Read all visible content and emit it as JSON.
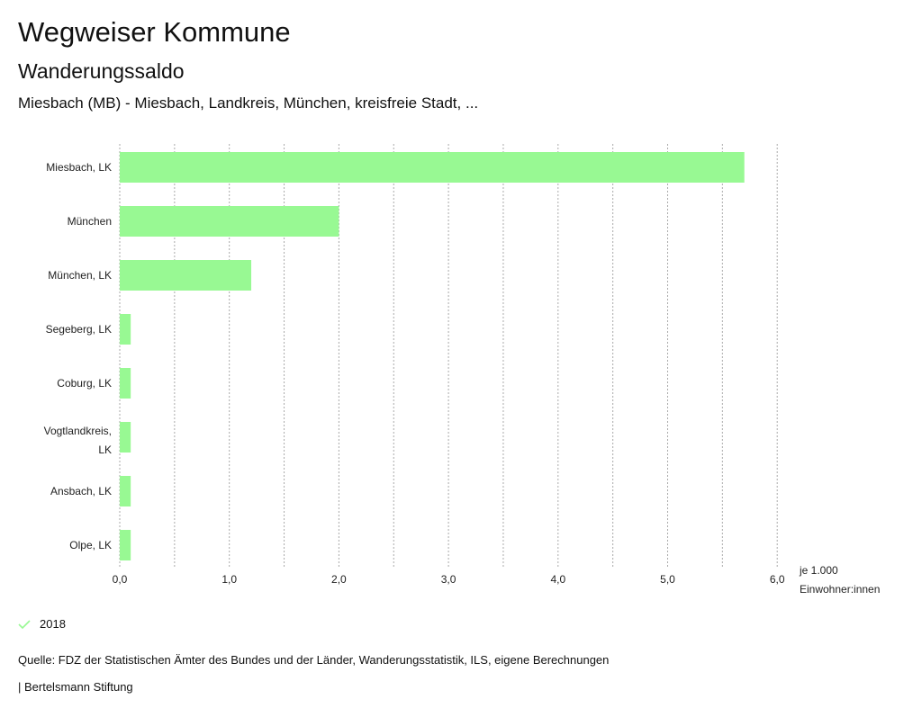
{
  "header": {
    "title": "Wegweiser Kommune",
    "subtitle": "Wanderungssaldo",
    "region": "Miesbach (MB) - Miesbach, Landkreis, München, kreisfreie Stadt, ..."
  },
  "chart_data": {
    "type": "bar",
    "orientation": "horizontal",
    "categories": [
      "Miesbach, LK",
      "München",
      "München, LK",
      "Segeberg, LK",
      "Coburg, LK",
      "Vogtlandkreis, LK",
      "Ansbach, LK",
      "Olpe, LK"
    ],
    "series": [
      {
        "name": "2018",
        "values": [
          5.7,
          2.0,
          1.2,
          0.1,
          0.1,
          0.1,
          0.1,
          0.1
        ],
        "color": "#98f993"
      }
    ],
    "xlim": [
      0,
      6
    ],
    "xticks": [
      "0,0",
      "1,0",
      "2,0",
      "3,0",
      "4,0",
      "5,0",
      "6,0"
    ],
    "xlabel_line1": "je 1.000",
    "xlabel_line2": "Einwohner:innen",
    "grid": true,
    "legend": "bottom-left"
  },
  "footer": {
    "source": "Quelle: FDZ der Statistischen Ämter des Bundes und der Länder, Wanderungsstatistik, ILS, eigene Berechnungen",
    "brand": "| Bertelsmann Stiftung"
  }
}
